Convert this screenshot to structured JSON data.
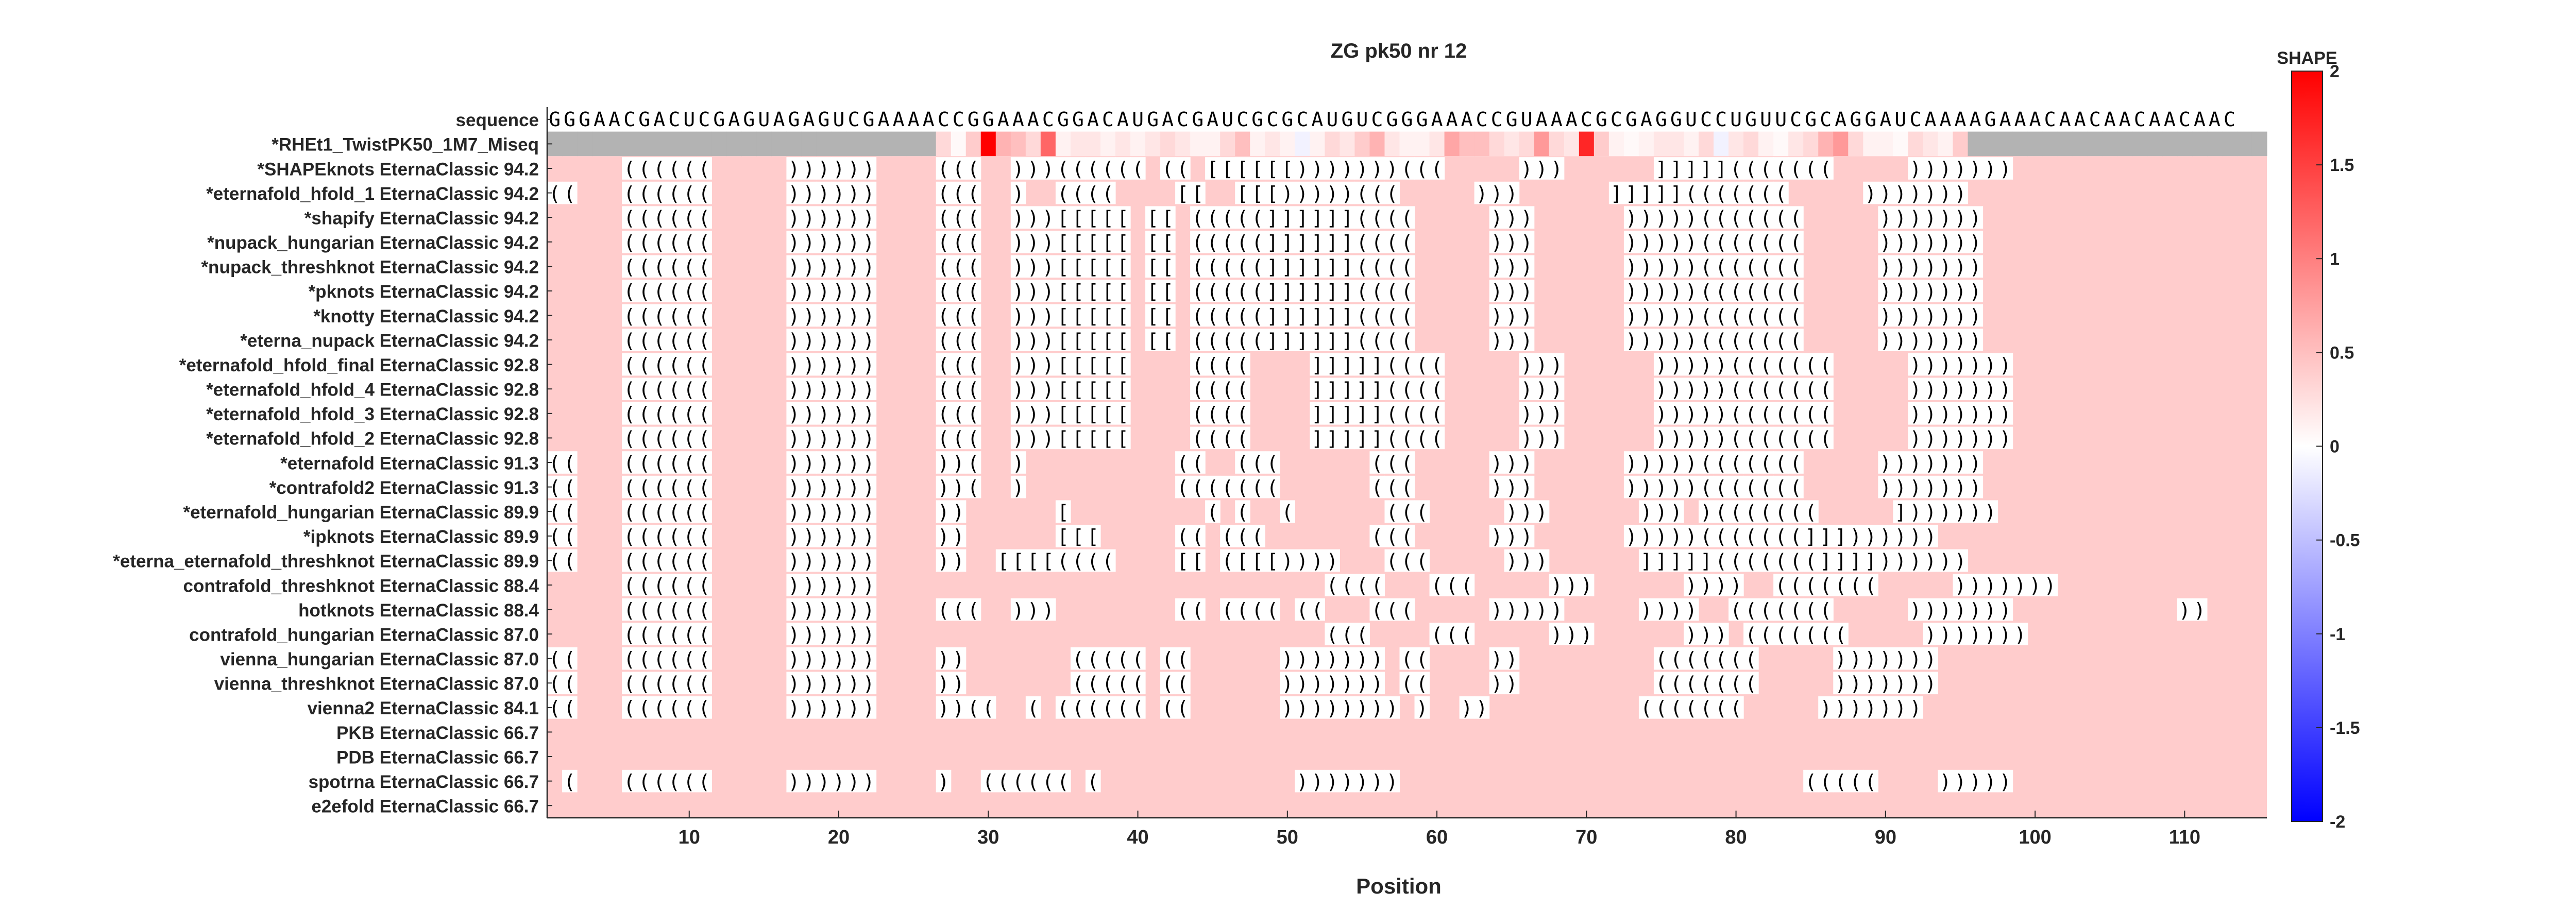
{
  "chart_data": {
    "type": "heatmap",
    "title": "ZG pk50 nr 12",
    "xlabel": "Position",
    "x_ticks": [
      10,
      20,
      30,
      40,
      50,
      60,
      70,
      80,
      90,
      100,
      110
    ],
    "xlim": [
      1,
      115
    ],
    "sequence_label": "sequence",
    "sequence": "GGGAACGACUCGAGUAGAGUCGAAAACCGGAAACGGACAUGACGAUCGCGCAUGUCGGGAAACCGUAAACGCGAGGUCCUGUUCGCAGGAUCAAAAGAAACAACAACAACAAC",
    "shape_row": {
      "label": "*RHEt1_TwistPK50_1M7_Miseq",
      "data_start": 27,
      "data_end": 95,
      "values": [
        0.3,
        0.05,
        0.4,
        2.0,
        0.6,
        0.5,
        0.3,
        1.2,
        0.1,
        0.2,
        0.2,
        0.1,
        0.2,
        0.1,
        0.2,
        0.3,
        0.2,
        0.1,
        0.1,
        0.3,
        0.5,
        0.1,
        0.2,
        0.1,
        -0.1,
        0.1,
        0.3,
        0.2,
        0.4,
        0.6,
        0.2,
        0.1,
        0.1,
        0.2,
        0.7,
        0.5,
        0.5,
        0.3,
        0.2,
        0.3,
        0.8,
        0.3,
        0.2,
        1.7,
        0.4,
        0.1,
        0.05,
        0.1,
        0.2,
        0.2,
        0.1,
        0.3,
        -0.1,
        0.2,
        0.3,
        0.1,
        0.05,
        0.2,
        0.3,
        0.6,
        0.8,
        0.3,
        0.1,
        0.1,
        0.05,
        0.3,
        0.2,
        0.1,
        0.4
      ],
      "gray_color": "#b3b3b3"
    },
    "rows": [
      {
        "label": "*SHAPEknots EternaClassic",
        "score": "94.2",
        "structure": ".....((((((.....))))))....(((..)))((((((.((.[[[[[[)))))))(((.....)))......]]]]](((((((.....))))))).................."
      },
      {
        "label": "*eternafold_hfold_1 EternaClassic",
        "score": "94.2",
        "structure": "((...((((((.....))))))....(((..)..((((....[[..[[[)))))(((.....)))......]]]]](((((((.....))))))).................."
      },
      {
        "label": "*shapify EternaClassic",
        "score": "94.2",
        "structure": ".....((((((.....))))))....(((..)))[[[[[.[[.(((((]]]]]]((((.....)))......)))))(((((((.....))))))).................."
      },
      {
        "label": "*nupack_hungarian EternaClassic",
        "score": "94.2",
        "structure": ".....((((((.....))))))....(((..)))[[[[[.[[.(((((]]]]]]((((.....)))......)))))(((((((.....))))))).................."
      },
      {
        "label": "*nupack_threshknot EternaClassic",
        "score": "94.2",
        "structure": ".....((((((.....))))))....(((..)))[[[[[.[[.(((((]]]]]]((((.....)))......)))))(((((((.....))))))).................."
      },
      {
        "label": "*pknots EternaClassic",
        "score": "94.2",
        "structure": ".....((((((.....))))))....(((..)))[[[[[.[[.(((((]]]]]]((((.....)))......)))))(((((((.....))))))).................."
      },
      {
        "label": "*knotty EternaClassic",
        "score": "94.2",
        "structure": ".....((((((.....))))))....(((..)))[[[[[.[[.(((((]]]]]]((((.....)))......)))))(((((((.....))))))).................."
      },
      {
        "label": "*eterna_nupack EternaClassic",
        "score": "94.2",
        "structure": ".....((((((.....))))))....(((..)))[[[[[.[[.(((((]]]]]]((((.....)))......)))))(((((((.....))))))).................."
      },
      {
        "label": "*eternafold_hfold_final EternaClassic",
        "score": "92.8",
        "structure": ".....((((((.....))))))....(((..)))[[[[[....((((....]]]]]((((.....)))......)))))(((((((.....))))))).................."
      },
      {
        "label": "*eternafold_hfold_4 EternaClassic",
        "score": "92.8",
        "structure": ".....((((((.....))))))....(((..)))[[[[[....((((....]]]]]((((.....)))......)))))(((((((.....))))))).................."
      },
      {
        "label": "*eternafold_hfold_3 EternaClassic",
        "score": "92.8",
        "structure": ".....((((((.....))))))....(((..)))[[[[[....((((....]]]]]((((.....)))......)))))(((((((.....))))))).................."
      },
      {
        "label": "*eternafold_hfold_2 EternaClassic",
        "score": "92.8",
        "structure": ".....((((((.....))))))....(((..)))[[[[[....((((....]]]]]((((.....)))......)))))(((((((.....))))))).................."
      },
      {
        "label": "*eternafold EternaClassic",
        "score": "91.3",
        "structure": "((...((((((.....))))))....))(..)..........((..(((......(((.....)))......)))))(((((((.....))))))).................."
      },
      {
        "label": "*contrafold2 EternaClassic",
        "score": "91.3",
        "structure": "((...((((((.....))))))....))(..)..........(((((((......(((.....)))......)))))(((((((.....))))))).................."
      },
      {
        "label": "*eternafold_hungarian EternaClassic",
        "score": "89.9",
        "structure": "((...((((((.....))))))....))......[.........(.(..(......(((.....)))......))).)(((((((.....]))))))................."
      },
      {
        "label": "*ipknots EternaClassic",
        "score": "89.9",
        "structure": "((...((((((.....))))))....))......[[[.....((.(((.......(((.....)))......)))))(((((((]]]))))))................."
      },
      {
        "label": "*eterna_eternafold_threshknot EternaClassic",
        "score": "89.9",
        "structure": "((...((((((.....))))))....))..[[[[((((....[[.([[[))))...(((.....)))......]]]]](((((((]]]]))))))................."
      },
      {
        "label": "contrafold_threshknot EternaClassic",
        "score": "88.4",
        "structure": ".....((((((.....))))))..............................((((...(((.....)))......))))..(((((((.....))))))).................."
      },
      {
        "label": "hotknots EternaClassic",
        "score": "88.4",
        "structure": ".....((((((.....))))))....(((..)))........((.((((.((...(((.....))))).....))))..(((((((.....)))))))...........))......"
      },
      {
        "label": "contrafold_hungarian EternaClassic",
        "score": "87.0",
        "structure": ".....((((((.....))))))..............................(((....(((.....)))......))).(((((((.....))))))).................."
      },
      {
        "label": "vienna_hungarian EternaClassic",
        "score": "87.0",
        "structure": "((...((((((.....))))))....)).......(((((.((......))))))).((....)).........(((((((.....))))))).................."
      },
      {
        "label": "vienna_threshknot EternaClassic",
        "score": "87.0",
        "structure": "((...((((((.....))))))....)).......(((((.((......))))))).((....)).........(((((((.....))))))).................."
      },
      {
        "label": "vienna2 EternaClassic",
        "score": "84.1",
        "structure": "((...((((((.....))))))....))((..(.((((((.((......)))))))).)..))..........(((((((.....))))))).................."
      },
      {
        "label": "PKB EternaClassic",
        "score": "66.7",
        "structure": ".................................................................................................................."
      },
      {
        "label": "PDB EternaClassic",
        "score": "66.7",
        "structure": ".................................................................................................................."
      },
      {
        "label": "spotrna EternaClassic",
        "score": "66.7",
        "structure": ".(...((((((.....))))))....)..((((((.(.............)))))))...........................(((((....))))).............."
      },
      {
        "label": "e2efold EternaClassic",
        "score": "66.7",
        "structure": ".................................................................................................................."
      }
    ],
    "background_color": "#ffcccc",
    "colorbar": {
      "title": "SHAPE",
      "range": [
        -2,
        2
      ],
      "ticks": [
        "2",
        "1.5",
        "1",
        "0.5",
        "0",
        "-0.5",
        "-1",
        "-1.5",
        "-2"
      ],
      "colors": [
        "#0000ff",
        "#ffffff",
        "#ff0000"
      ]
    }
  }
}
